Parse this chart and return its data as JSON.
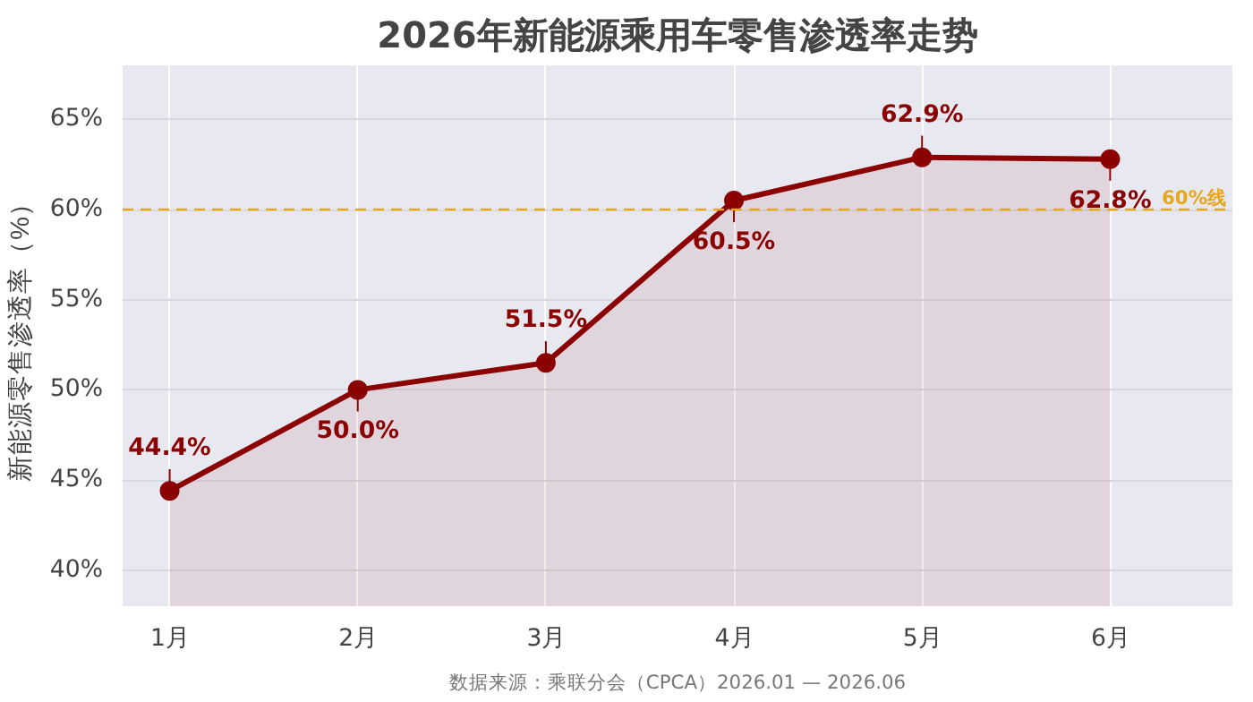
{
  "chart_data": {
    "type": "area",
    "title": "2026年新能源乘用车零售渗透率走势",
    "ylabel": "新能源零售渗透率（%）",
    "categories": [
      "1月",
      "2月",
      "3月",
      "4月",
      "5月",
      "6月"
    ],
    "series": [
      {
        "color": "#8b0000",
        "values": [
          44.4,
          50.0,
          51.5,
          60.5,
          62.9,
          62.8
        ],
        "value_labels": [
          "44.4%",
          "50.0%",
          "51.5%",
          "60.5%",
          "62.9%",
          "62.8%"
        ]
      }
    ],
    "ylim": [
      38,
      68
    ],
    "yticks": [
      {
        "value": 40,
        "label": "40%"
      },
      {
        "value": 45,
        "label": "45%"
      },
      {
        "value": 50,
        "label": "50%"
      },
      {
        "value": 55,
        "label": "55%"
      },
      {
        "value": 60,
        "label": "60%"
      },
      {
        "value": 65,
        "label": "65%"
      }
    ],
    "ref_lines": [
      {
        "axis": "y",
        "value": 60,
        "label": "60%线",
        "color": "#e6a817",
        "line_style": "dashed"
      }
    ],
    "annotations": [
      "数据来源：乘联分会（CPCA）2026.01 — 2026.06"
    ],
    "marker": "circle",
    "grid": true
  }
}
